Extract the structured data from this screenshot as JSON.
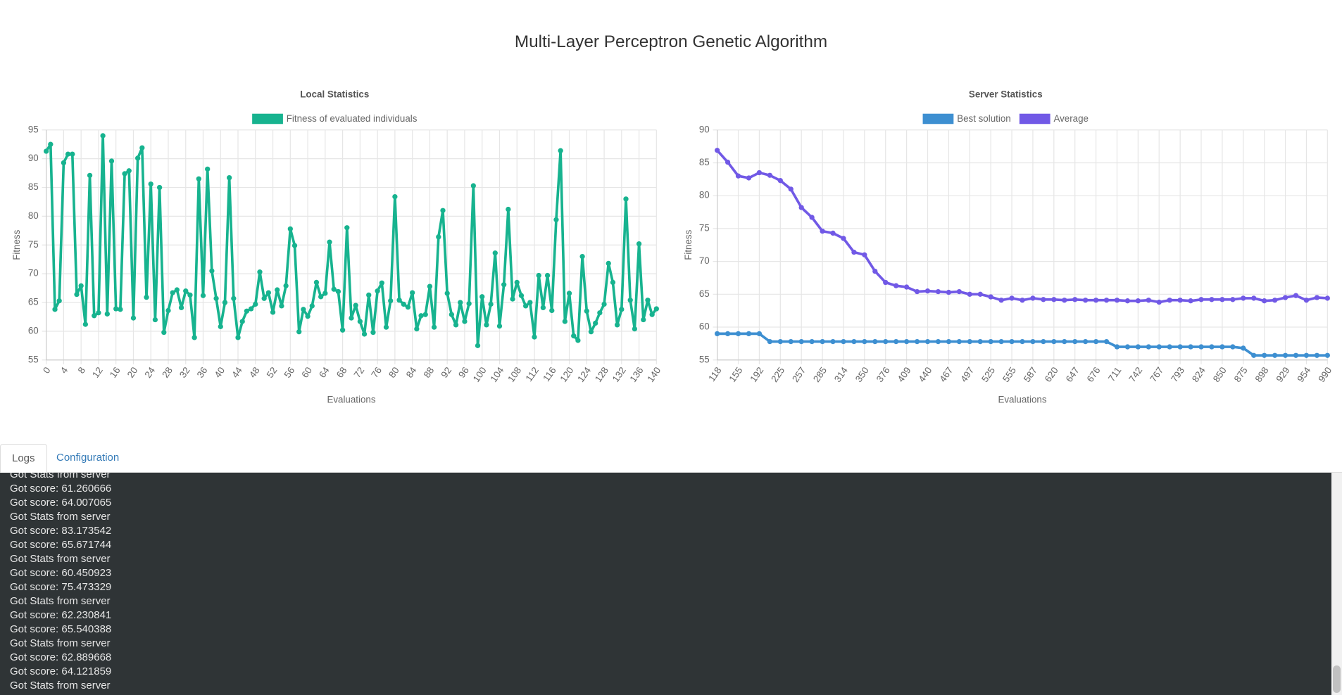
{
  "title": "Multi-Layer Perceptron Genetic Algorithm",
  "chart_data": [
    {
      "type": "line",
      "title": "Local Statistics",
      "x_label": "Evaluations",
      "y_label": "Fitness",
      "grid": true,
      "legend": "top",
      "categories": [
        0,
        null,
        null,
        null,
        4,
        null,
        null,
        null,
        8,
        null,
        null,
        null,
        12,
        null,
        null,
        null,
        16,
        null,
        null,
        null,
        20,
        null,
        null,
        null,
        24,
        null,
        null,
        null,
        28,
        null,
        null,
        null,
        32,
        null,
        null,
        null,
        36,
        null,
        null,
        null,
        40,
        null,
        null,
        null,
        44,
        null,
        null,
        null,
        48,
        null,
        null,
        null,
        52,
        null,
        null,
        null,
        56,
        null,
        null,
        null,
        60,
        null,
        null,
        null,
        64,
        null,
        null,
        null,
        68,
        null,
        null,
        null,
        72,
        null,
        null,
        null,
        76,
        null,
        null,
        null,
        80,
        null,
        null,
        null,
        84,
        null,
        null,
        null,
        88,
        null,
        null,
        null,
        92,
        null,
        null,
        null,
        96,
        null,
        null,
        null,
        100,
        null,
        null,
        null,
        104,
        null,
        null,
        null,
        108,
        null,
        null,
        null,
        112,
        null,
        null,
        null,
        116,
        null,
        null,
        null,
        120,
        null,
        null,
        null,
        124,
        null,
        null,
        null,
        128,
        null,
        null,
        null,
        132,
        null,
        null,
        null,
        136,
        null,
        null,
        null,
        140
      ],
      "series": [
        {
          "name": "Fitness of evaluated individuals",
          "color": "#17b38f",
          "values": [
            91.3,
            92.5,
            63.8,
            65.3,
            89.3,
            90.8,
            90.8,
            66.4,
            67.9,
            61.2,
            87.1,
            62.7,
            63.2,
            94.0,
            63.0,
            89.6,
            63.9,
            63.8,
            87.4,
            87.9,
            62.3,
            90.1,
            91.9,
            65.9,
            85.6,
            62.0,
            85.0,
            59.8,
            63.6,
            66.7,
            67.2,
            64.1,
            67.0,
            66.3,
            58.9,
            86.5,
            66.2,
            88.2,
            70.5,
            65.7,
            60.8,
            65.0,
            86.7,
            65.7,
            58.9,
            61.7,
            63.5,
            63.9,
            64.7,
            70.3,
            65.7,
            66.7,
            63.3,
            67.2,
            64.4,
            67.9,
            77.8,
            74.9,
            59.9,
            63.8,
            62.6,
            64.4,
            68.5,
            66.0,
            66.6,
            75.5,
            67.3,
            66.9,
            60.2,
            78.0,
            62.3,
            64.5,
            61.7,
            59.5,
            66.3,
            59.8,
            67.0,
            68.4,
            60.7,
            65.3,
            83.4,
            65.4,
            64.7,
            64.2,
            66.7,
            60.4,
            62.7,
            62.9,
            67.8,
            60.7,
            76.4,
            81.0,
            66.6,
            62.9,
            61.1,
            65.0,
            61.7,
            64.8,
            85.3,
            57.5,
            66.0,
            61.1,
            64.7,
            73.6,
            60.9,
            68.1,
            81.2,
            65.6,
            68.5,
            66.2,
            64.4,
            65.0,
            59.0,
            69.7,
            64.1,
            69.7,
            63.6,
            79.4,
            91.4,
            61.7,
            66.6,
            59.2,
            58.4,
            73.0,
            63.5,
            59.9,
            61.4,
            63.2,
            64.7,
            71.8,
            68.5,
            61.1,
            63.8,
            83.0,
            65.4,
            60.4,
            75.2,
            62.0,
            65.4,
            62.9,
            63.9
          ]
        }
      ],
      "ylim": [
        55,
        95
      ],
      "yticks": [
        55,
        60,
        65,
        70,
        75,
        80,
        85,
        90,
        95
      ]
    },
    {
      "type": "line",
      "title": "Server Statistics",
      "x_label": "Evaluations",
      "y_label": "Fitness",
      "grid": true,
      "legend": "top",
      "categories": [
        118,
        null,
        155,
        null,
        192,
        null,
        225,
        null,
        257,
        null,
        285,
        null,
        314,
        null,
        350,
        null,
        376,
        null,
        409,
        null,
        440,
        null,
        467,
        null,
        497,
        null,
        525,
        null,
        555,
        null,
        587,
        null,
        620,
        null,
        647,
        null,
        676,
        null,
        711,
        null,
        742,
        null,
        767,
        null,
        793,
        null,
        824,
        null,
        850,
        null,
        875,
        null,
        898,
        null,
        929,
        null,
        954,
        null,
        990
      ],
      "series": [
        {
          "name": "Best solution",
          "color": "#3d8fd1",
          "values": [
            59.0,
            59.0,
            59.0,
            59.0,
            59.0,
            57.8,
            57.8,
            57.8,
            57.8,
            57.8,
            57.8,
            57.8,
            57.8,
            57.8,
            57.8,
            57.8,
            57.8,
            57.8,
            57.8,
            57.8,
            57.8,
            57.8,
            57.8,
            57.8,
            57.8,
            57.8,
            57.8,
            57.8,
            57.8,
            57.8,
            57.8,
            57.8,
            57.8,
            57.8,
            57.8,
            57.8,
            57.8,
            57.8,
            57.0,
            57.0,
            57.0,
            57.0,
            57.0,
            57.0,
            57.0,
            57.0,
            57.0,
            57.0,
            57.0,
            57.0,
            56.8,
            55.7,
            55.7,
            55.7,
            55.7,
            55.7,
            55.7,
            55.7,
            55.7
          ]
        },
        {
          "name": "Average",
          "color": "#7159e6",
          "values": [
            86.9,
            85.1,
            83.0,
            82.7,
            83.5,
            83.1,
            82.3,
            81.0,
            78.2,
            76.7,
            74.6,
            74.3,
            73.5,
            71.4,
            71.0,
            68.5,
            66.8,
            66.3,
            66.1,
            65.4,
            65.5,
            65.4,
            65.3,
            65.4,
            65.0,
            65.0,
            64.6,
            64.1,
            64.4,
            64.1,
            64.4,
            64.2,
            64.2,
            64.1,
            64.2,
            64.1,
            64.1,
            64.1,
            64.1,
            64.0,
            64.0,
            64.1,
            63.8,
            64.1,
            64.1,
            64.0,
            64.2,
            64.2,
            64.2,
            64.2,
            64.4,
            64.4,
            64.0,
            64.1,
            64.5,
            64.8,
            64.1,
            64.5,
            64.4
          ]
        }
      ],
      "ylim": [
        55,
        90
      ],
      "yticks": [
        55,
        60,
        65,
        70,
        75,
        80,
        85,
        90
      ]
    }
  ],
  "tabs": [
    "Logs",
    "Configuration"
  ],
  "logs": [
    "Got Stats from server",
    "Got score: 61.260666",
    "Got score: 64.007065",
    "Got Stats from server",
    "Got score: 83.173542",
    "Got score: 65.671744",
    "Got Stats from server",
    "Got score: 60.450923",
    "Got score: 75.473329",
    "Got Stats from server",
    "Got score: 62.230841",
    "Got score: 65.540388",
    "Got Stats from server",
    "Got score: 62.889668",
    "Got score: 64.121859",
    "Got Stats from server"
  ]
}
